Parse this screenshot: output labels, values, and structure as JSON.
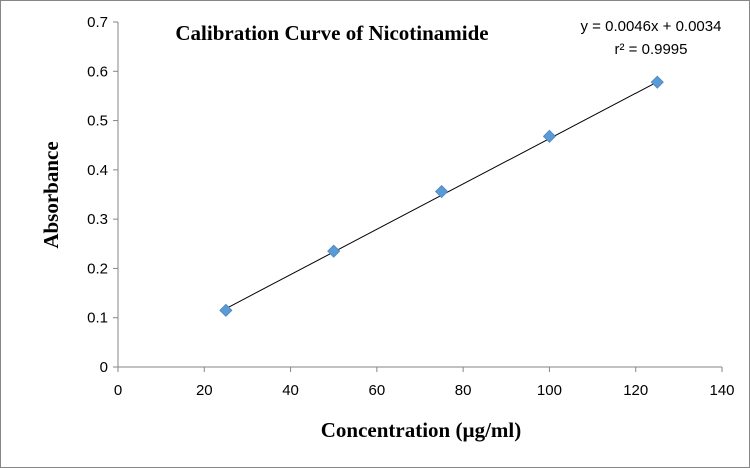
{
  "chart_data": {
    "type": "scatter",
    "title": "Calibration Curve of Nicotinamide",
    "xlabel": "Concentration  (µg/ml)",
    "ylabel": "Absorbance",
    "xlim": [
      0,
      140
    ],
    "ylim": [
      0,
      0.7
    ],
    "xticks": [
      "0",
      "20",
      "40",
      "60",
      "80",
      "100",
      "120",
      "140"
    ],
    "yticks": [
      "0",
      "0.1",
      "0.2",
      "0.3",
      "0.4",
      "0.5",
      "0.6",
      "0.7"
    ],
    "grid": false,
    "series": [
      {
        "name": "Absorbance",
        "marker": "diamond",
        "color": "#5B9BD5",
        "x": [
          25,
          50,
          75,
          100,
          125
        ],
        "y": [
          0.115,
          0.235,
          0.356,
          0.468,
          0.578
        ]
      }
    ],
    "trendline": {
      "slope": 0.0046,
      "intercept": 0.0034,
      "x_range": [
        25,
        125
      ],
      "color": "#000000",
      "equation": "y = 0.0046x + 0.0034",
      "r_squared": "r² = 0.9995"
    }
  }
}
